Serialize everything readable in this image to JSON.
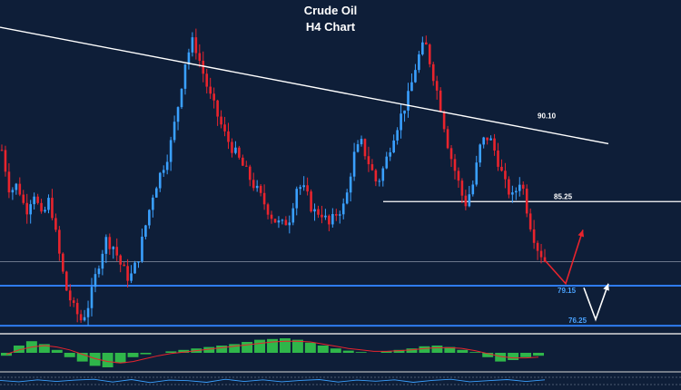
{
  "chart_data": {
    "type": "candlestick",
    "title": "Crude Oil",
    "subtitle": "H4 Chart",
    "ylim": [
      75.4,
      97.9
    ],
    "grid": false,
    "colors": {
      "background": "#0e1e38",
      "up_candle": "#3aa0ff",
      "down_candle": "#e8242d",
      "support_line": "#2f7cf0",
      "trendline": "#ffffff",
      "bearish_arrow": "#e8242d",
      "bullish_arrow": "#ffffff",
      "macd_hist": "#2fb64a",
      "macd_signal": "#e8242d",
      "level_label_white": "#ffffff",
      "level_label_blue": "#4aa3ff"
    },
    "levels": [
      {
        "label": "90.10",
        "value": 90.1,
        "kind": "trendline"
      },
      {
        "label": "85.25",
        "value": 85.25,
        "kind": "resistance"
      },
      {
        "label": "79.15",
        "value": 79.15,
        "kind": "support"
      },
      {
        "label": "76.25",
        "value": 76.25,
        "kind": "support"
      }
    ],
    "current_price": 80.9,
    "trendline": {
      "start": 97.9,
      "end": 89.45
    },
    "price_path": [
      89.0,
      86.0,
      86.5,
      84.5,
      86.0,
      84.0,
      85.5,
      82.0,
      79.0,
      77.5,
      76.6,
      78.0,
      80.5,
      82.5,
      82.0,
      80.5,
      79.6,
      81.0,
      83.5,
      86.0,
      87.5,
      89.0,
      92.0,
      95.5,
      97.0,
      95.0,
      93.0,
      91.5,
      90.0,
      89.0,
      88.0,
      87.0,
      86.0,
      85.0,
      84.0,
      83.5,
      84.0,
      86.5,
      86.0,
      84.5,
      84.5,
      83.5,
      84.5,
      85.0,
      88.5,
      89.5,
      88.0,
      86.5,
      88.0,
      90.0,
      91.5,
      93.0,
      95.5,
      96.8,
      94.5,
      92.0,
      89.0,
      87.0,
      85.0,
      86.5,
      89.5,
      90.0,
      88.5,
      86.5,
      85.5,
      87.0,
      84.0,
      82.0,
      81.0
    ],
    "forecast_bearish": [
      81.0,
      79.3,
      83.2
    ],
    "forecast_bullish": [
      79.0,
      76.7,
      79.3
    ],
    "macd": {
      "histogram": [
        -0.2,
        0.5,
        0.8,
        0.6,
        0.2,
        -0.3,
        -0.6,
        -0.9,
        -1.0,
        -0.7,
        -0.3,
        -0.1,
        0.0,
        0.1,
        0.2,
        0.3,
        0.4,
        0.5,
        0.6,
        0.75,
        0.9,
        0.95,
        1.0,
        0.9,
        0.7,
        0.5,
        0.3,
        0.15,
        0.05,
        0.0,
        0.1,
        0.2,
        0.3,
        0.45,
        0.5,
        0.4,
        0.2,
        0.05,
        -0.3,
        -0.6,
        -0.5,
        -0.3,
        -0.2
      ],
      "signal": [
        -0.1,
        0.2,
        0.4,
        0.5,
        0.4,
        0.2,
        -0.1,
        -0.4,
        -0.6,
        -0.7,
        -0.6,
        -0.4,
        -0.2,
        -0.05,
        0.05,
        0.15,
        0.25,
        0.35,
        0.45,
        0.55,
        0.65,
        0.75,
        0.8,
        0.8,
        0.75,
        0.6,
        0.45,
        0.3,
        0.2,
        0.1,
        0.1,
        0.15,
        0.2,
        0.3,
        0.35,
        0.35,
        0.3,
        0.15,
        -0.05,
        -0.25,
        -0.35,
        -0.35,
        -0.3
      ]
    },
    "oscillator": [
      0.2,
      -0.3,
      0.4,
      -0.2,
      0.3,
      0.6,
      -0.4,
      0.5,
      -0.6,
      0.3,
      0.1,
      -0.5,
      0.6,
      -0.2,
      0.4,
      -0.3,
      0.2,
      0.5,
      -0.4,
      0.3,
      -0.1,
      0.4,
      -0.5,
      0.2,
      0.6,
      -0.3,
      0.1,
      0.5,
      -0.2,
      0.4
    ]
  }
}
